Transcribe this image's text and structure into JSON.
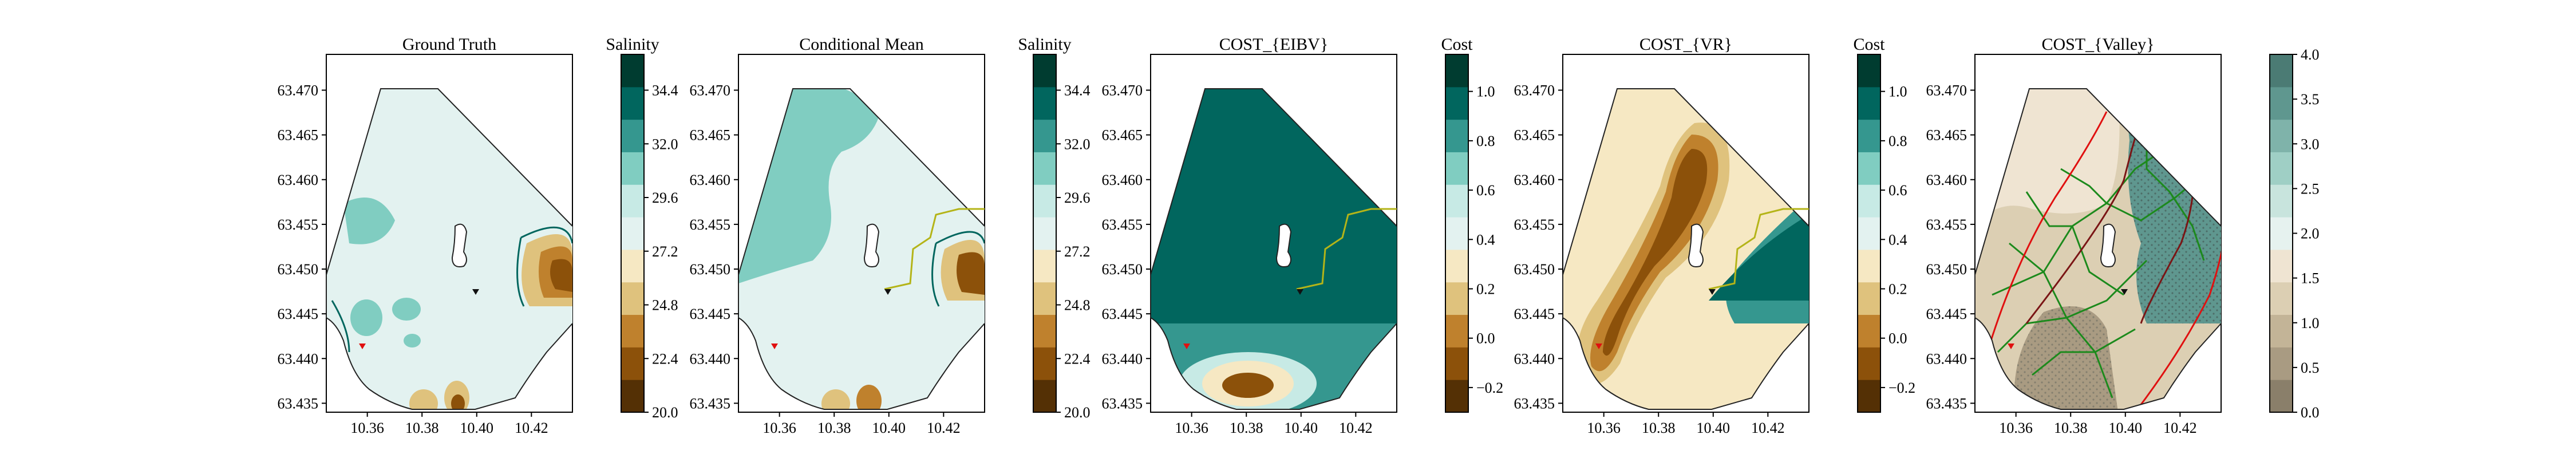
{
  "colors": {
    "salinity_ramp": [
      "#543005",
      "#8c510a",
      "#bf812d",
      "#dfc27d",
      "#f6e8c3",
      "#e3f2f0",
      "#c7eae5",
      "#80cdc1",
      "#35978f",
      "#01665e",
      "#003c30"
    ],
    "valley_ramp": [
      "#8a7f6a",
      "#a99b82",
      "#c3b497",
      "#dccfb3",
      "#efe4d2",
      "#e6f2ef",
      "#c8e4dd",
      "#9fcfc5",
      "#7fb3aa",
      "#5f978f",
      "#4b7b74"
    ],
    "track": "#b4b418",
    "boundary_edge": "#222222",
    "red_curve": "#e01010",
    "tree_green": "#1c8a1c"
  },
  "chart_data": [
    {
      "type": "contour",
      "title": "Ground Truth",
      "colorbar_title": "Salinity",
      "colorbar_ticks": [
        "20.0",
        "22.4",
        "24.8",
        "27.2",
        "29.6",
        "32.0",
        "34.4"
      ],
      "colorbar_range": [
        20.0,
        36.0
      ],
      "x_ticks": [
        "10.36",
        "10.38",
        "10.40",
        "10.42"
      ],
      "y_ticks": [
        "63.435",
        "63.440",
        "63.445",
        "63.450",
        "63.455",
        "63.460",
        "63.465",
        "63.470"
      ],
      "xlim": [
        10.345,
        10.435
      ],
      "ylim": [
        63.434,
        63.474
      ]
    },
    {
      "type": "contour",
      "title": "Conditional Mean",
      "colorbar_title": "Salinity",
      "colorbar_ticks": [
        "20.0",
        "22.4",
        "24.8",
        "27.2",
        "29.6",
        "32.0",
        "34.4"
      ],
      "colorbar_range": [
        20.0,
        36.0
      ],
      "x_ticks": [
        "10.36",
        "10.38",
        "10.40",
        "10.42"
      ],
      "y_ticks": [
        "63.435",
        "63.440",
        "63.445",
        "63.450",
        "63.455",
        "63.460",
        "63.465",
        "63.470"
      ],
      "xlim": [
        10.345,
        10.435
      ],
      "ylim": [
        63.434,
        63.474
      ]
    },
    {
      "type": "contour",
      "title": "COST_{EIBV}",
      "colorbar_title": "Cost",
      "colorbar_ticks": [
        "−0.2",
        "0.0",
        "0.2",
        "0.4",
        "0.6",
        "0.8",
        "1.0"
      ],
      "colorbar_range": [
        -0.3,
        1.15
      ],
      "x_ticks": [
        "10.36",
        "10.38",
        "10.40",
        "10.42"
      ],
      "y_ticks": [
        "63.435",
        "63.440",
        "63.445",
        "63.450",
        "63.455",
        "63.460",
        "63.465",
        "63.470"
      ],
      "xlim": [
        10.345,
        10.435
      ],
      "ylim": [
        63.434,
        63.474
      ]
    },
    {
      "type": "contour",
      "title": "COST_{VR}",
      "colorbar_title": "Cost",
      "colorbar_ticks": [
        "−0.2",
        "0.0",
        "0.2",
        "0.4",
        "0.6",
        "0.8",
        "1.0"
      ],
      "colorbar_range": [
        -0.3,
        1.15
      ],
      "x_ticks": [
        "10.36",
        "10.38",
        "10.40",
        "10.42"
      ],
      "y_ticks": [
        "63.435",
        "63.440",
        "63.445",
        "63.450",
        "63.455",
        "63.460",
        "63.465",
        "63.470"
      ],
      "xlim": [
        10.345,
        10.435
      ],
      "ylim": [
        63.434,
        63.474
      ]
    },
    {
      "type": "contour",
      "title": "COST_{Valley}",
      "colorbar_title": "",
      "colorbar_ticks": [
        "0.0",
        "0.5",
        "1.0",
        "1.5",
        "2.0",
        "2.5",
        "3.0",
        "3.5",
        "4.0"
      ],
      "colorbar_range": [
        0.0,
        4.0
      ],
      "x_ticks": [
        "10.36",
        "10.38",
        "10.40",
        "10.42"
      ],
      "y_ticks": [
        "63.435",
        "63.440",
        "63.445",
        "63.450",
        "63.455",
        "63.460",
        "63.465",
        "63.470"
      ],
      "xlim": [
        10.345,
        10.435
      ],
      "ylim": [
        63.434,
        63.474
      ]
    }
  ]
}
